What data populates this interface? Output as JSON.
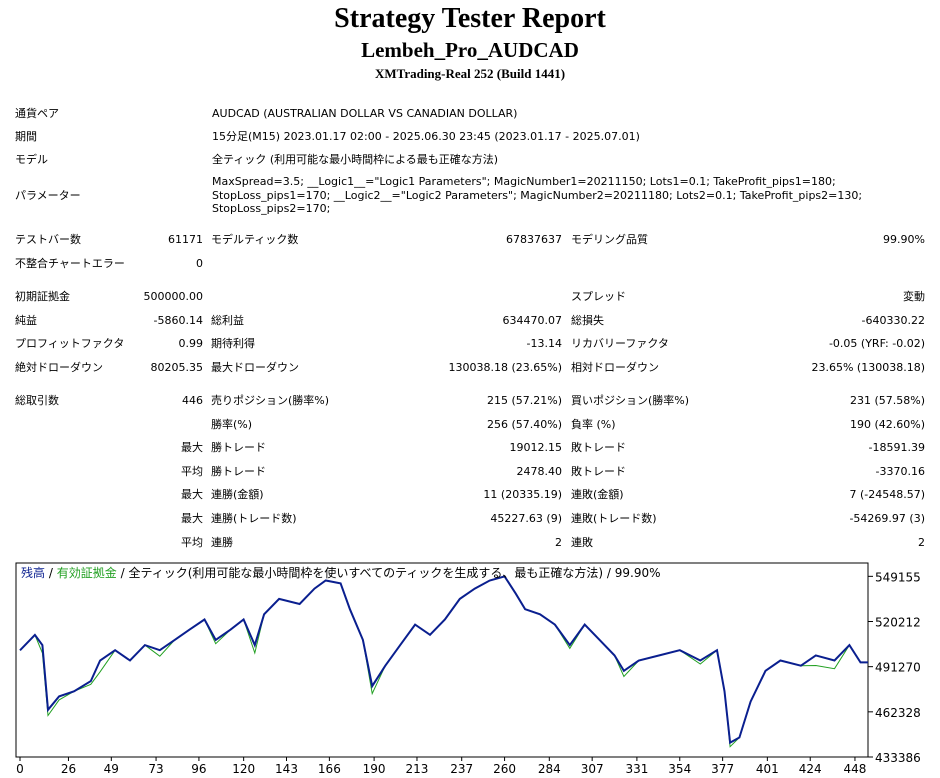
{
  "header": {
    "title": "Strategy Tester Report",
    "subtitle": "Lembeh_Pro_AUDCAD",
    "server": "XMTrading-Real 252 (Build 1441)"
  },
  "info": [
    {
      "label": "通貨ペア",
      "lines": [
        "AUDCAD (AUSTRALIAN DOLLAR VS CANADIAN DOLLAR)"
      ]
    },
    {
      "label": "期間",
      "lines": [
        "15分足(M15) 2023.01.17 02:00 - 2025.06.30 23:45 (2023.01.17 - 2025.07.01)"
      ]
    },
    {
      "label": "モデル",
      "lines": [
        "全ティック (利用可能な最小時間枠による最も正確な方法)"
      ]
    },
    {
      "label": "パラメーター",
      "lines": [
        "MaxSpread=3.5; __Logic1__=\"Logic1 Parameters\"; MagicNumber1=20211150; Lots1=0.1; TakeProfit_pips1=180;",
        "StopLoss_pips1=170; __Logic2__=\"Logic2 Parameters\"; MagicNumber2=20211180; Lots2=0.1; TakeProfit_pips2=130;",
        "StopLoss_pips2=170;"
      ]
    }
  ],
  "stats": [
    [
      "テストバー数",
      "61171",
      "モデルティック数",
      "67837637",
      "モデリング品質",
      "99.90%"
    ],
    [
      "不整合チャートエラー",
      "0",
      null,
      null,
      null,
      null
    ],
    [
      "初期証拠金",
      "500000.00",
      null,
      null,
      "スプレッド",
      "変動"
    ],
    [
      "純益",
      "-5860.14",
      "総利益",
      "634470.07",
      "総損失",
      "-640330.22"
    ],
    [
      "プロフィットファクタ",
      "0.99",
      "期待利得",
      "-13.14",
      "リカバリーファクタ",
      "-0.05 (YRF: -0.02)"
    ],
    [
      "絶対ドローダウン",
      "80205.35",
      "最大ドローダウン",
      "130038.18 (23.65%)",
      "相対ドローダウン",
      "23.65% (130038.18)"
    ],
    [
      "総取引数",
      "446",
      "売りポジション(勝率%)",
      "215 (57.21%)",
      "買いポジション(勝率%)",
      "231 (57.58%)"
    ],
    [
      null,
      null,
      "勝率(%)",
      "256 (57.40%)",
      "負率 (%)",
      "190 (42.60%)"
    ],
    [
      null,
      "最大",
      "勝トレード",
      "19012.15",
      "敗トレード",
      "-18591.39"
    ],
    [
      null,
      "平均",
      "勝トレード",
      "2478.40",
      "敗トレード",
      "-3370.16"
    ],
    [
      null,
      "最大",
      "連勝(金額)",
      "11 (20335.19)",
      "連敗(金額)",
      "7 (-24548.57)"
    ],
    [
      null,
      "最大",
      "連勝(トレード数)",
      "45227.63 (9)",
      "連敗(トレード数)",
      "-54269.97 (3)"
    ],
    [
      null,
      "平均",
      "連勝",
      "2",
      "連敗",
      "2"
    ]
  ],
  "chart_data": {
    "type": "line",
    "legend_separator": "/",
    "legend_note": "全ティック(利用可能な最小時間枠を使いすべてのティックを生成する、最も正確な方法)",
    "legend_quality": "99.90%",
    "x": [
      0,
      8,
      12,
      15,
      21,
      29,
      38,
      43,
      51,
      59,
      67,
      75,
      83,
      91,
      99,
      105,
      113,
      120,
      126,
      131,
      139,
      150,
      158,
      164,
      172,
      177,
      184,
      189,
      196,
      204,
      212,
      220,
      228,
      236,
      244,
      252,
      260,
      266,
      271,
      279,
      287,
      295,
      303,
      311,
      319,
      324,
      332,
      343,
      354,
      365,
      374,
      378,
      381,
      386,
      392,
      400,
      408,
      419,
      427,
      437,
      445,
      451,
      455
    ],
    "series": [
      {
        "name": "残高",
        "color": "#0a1f8f",
        "values": [
          501780,
          511650,
          505070,
          463600,
          472200,
          475500,
          482050,
          495200,
          501800,
          495200,
          505100,
          501800,
          508400,
          515000,
          521500,
          508400,
          515000,
          521500,
          505100,
          524800,
          534700,
          531400,
          541300,
          546500,
          544600,
          528100,
          508400,
          478800,
          491900,
          505100,
          518200,
          511700,
          521500,
          534700,
          541300,
          546500,
          549100,
          538000,
          528100,
          524800,
          518200,
          505100,
          518200,
          508400,
          498500,
          488600,
          495200,
          498500,
          501800,
          495200,
          501800,
          475500,
          442600,
          445900,
          468900,
          488600,
          495200,
          491900,
          498500,
          495200,
          505100,
          494000,
          494000
        ]
      },
      {
        "name": "有効証拠金",
        "color": "#22a022",
        "values": [
          501780,
          511650,
          500000,
          460000,
          470000,
          475500,
          480000,
          488000,
          501800,
          495200,
          505100,
          498000,
          508400,
          515000,
          521500,
          506000,
          515000,
          521500,
          500000,
          524800,
          534700,
          531400,
          541300,
          546500,
          544600,
          528100,
          508400,
          474000,
          491900,
          505100,
          518200,
          511700,
          521500,
          534700,
          541300,
          546500,
          549100,
          538000,
          528100,
          524800,
          518200,
          503000,
          518200,
          508400,
          498500,
          485000,
          495200,
          498500,
          501800,
          493000,
          501800,
          475500,
          440000,
          445900,
          468900,
          488600,
          495200,
          491900,
          492000,
          490000,
          505100,
          494000,
          494000
        ]
      }
    ],
    "xlim": [
      0,
      455
    ],
    "ylim": [
      433386,
      557700
    ],
    "xticks": [
      0,
      26,
      49,
      73,
      96,
      120,
      143,
      166,
      190,
      213,
      237,
      260,
      284,
      307,
      331,
      354,
      377,
      401,
      424,
      448
    ],
    "yticks": [
      433386,
      462328,
      491270,
      520212,
      549155
    ]
  }
}
